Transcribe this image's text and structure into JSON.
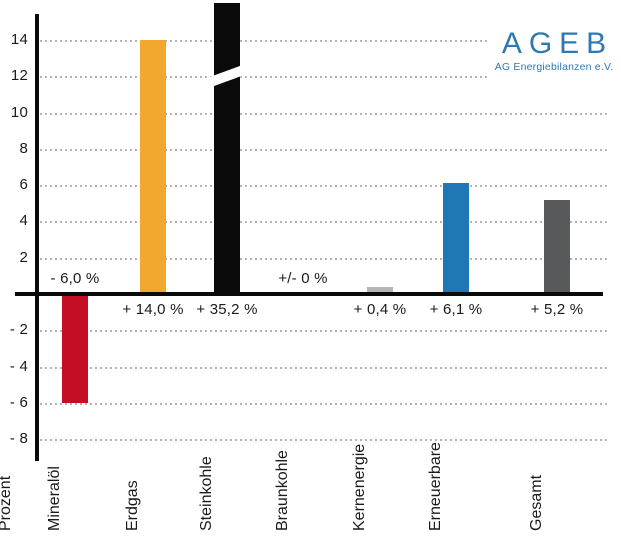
{
  "logo": {
    "title": "AGEB",
    "subtitle": "AG Energiebilanzen e.V.",
    "color": "#2e79b2"
  },
  "chart_data": {
    "type": "bar",
    "title": "",
    "xlabel": "",
    "ylabel": "Prozent",
    "unit": "%",
    "ylim": [
      -8,
      15.8
    ],
    "grid": "horizontal dotted",
    "legend": "none",
    "categories": [
      "Mineralöl",
      "Erdgas",
      "Steinkohle",
      "Braunkohle",
      "Kernenergie",
      "Erneuerbare",
      "Gesamt"
    ],
    "values": [
      -6.0,
      14.0,
      35.2,
      0.0,
      0.4,
      6.1,
      5.2
    ],
    "value_labels": [
      "- 6,0 %",
      "+ 14,0 %",
      "+ 35,2 %",
      "+/- 0 %",
      "+ 0,4 %",
      "+ 6,1 %",
      "+ 5,2 %"
    ],
    "bar_colors": [
      "#c30e25",
      "#f2a72e",
      "#0a0a0a",
      "#999999",
      "#b5b5b5",
      "#1f78b5",
      "#58595b"
    ],
    "broken_axis_bar": "Steinkohle",
    "ytick_values": [
      14,
      12,
      10,
      8,
      6,
      4,
      2,
      -2,
      -4,
      -6,
      -8
    ],
    "ytick_labels": [
      "14",
      "12",
      "10",
      "8",
      "6",
      "4",
      "2",
      "- 2",
      "- 4",
      "- 6",
      "- 8"
    ],
    "colors": {
      "grid": "#b3b3b3",
      "axis": "#0a0a0a",
      "text": "#1a1a1a"
    }
  }
}
